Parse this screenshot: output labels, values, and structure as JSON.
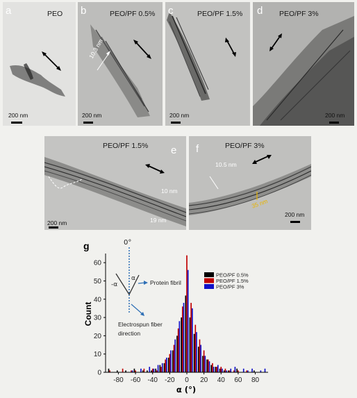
{
  "panels": [
    {
      "label": "a",
      "title": "PEO",
      "scale": "200 nm",
      "annotations": []
    },
    {
      "label": "b",
      "title": "PEO/PF 0.5%",
      "scale": "200 nm",
      "annotations": [
        "10.3 nm"
      ]
    },
    {
      "label": "c",
      "title": "PEO/PF 1.5%",
      "scale": "200 nm",
      "annotations": []
    },
    {
      "label": "d",
      "title": "PEO/PF 3%",
      "scale": "200 nm",
      "annotations": []
    },
    {
      "label": "e",
      "title": "PEO/PF 1.5%",
      "scale": "200 nm",
      "annotations": [
        "10 nm",
        "19 nm"
      ]
    },
    {
      "label": "f",
      "title": "PEO/PF 3%",
      "scale": "200 nm",
      "annotations": [
        "10.5 nm",
        "35 nm"
      ]
    }
  ],
  "chart_data": {
    "type": "bar",
    "panel_label": "g",
    "xlabel": "α (°)",
    "ylabel": "Count",
    "xlim": [
      -95,
      95
    ],
    "ylim": [
      0,
      65
    ],
    "xticks": [
      -80,
      -60,
      -40,
      -20,
      0,
      20,
      40,
      60,
      80
    ],
    "yticks": [
      0,
      10,
      20,
      30,
      40,
      50,
      60
    ],
    "grid": false,
    "legend_position": "right",
    "x": [
      -90,
      -85,
      -80,
      -75,
      -70,
      -65,
      -60,
      -55,
      -50,
      -45,
      -40,
      -35,
      -30,
      -25,
      -20,
      -15,
      -10,
      -5,
      0,
      5,
      10,
      15,
      20,
      25,
      30,
      35,
      40,
      45,
      50,
      55,
      60,
      65,
      70,
      75,
      80,
      85,
      90
    ],
    "series": [
      {
        "name": "PEO/PF 0.5%",
        "color": "#000000",
        "values": [
          2,
          0,
          1,
          0,
          1,
          0,
          2,
          0,
          1,
          1,
          1,
          2,
          4,
          5,
          8,
          12,
          20,
          30,
          42,
          30,
          21,
          14,
          9,
          7,
          4,
          3,
          2,
          1,
          1,
          0,
          2,
          0,
          0,
          0,
          1,
          0,
          0
        ]
      },
      {
        "name": "PEO/PF 1.5%",
        "color": "#c00000",
        "values": [
          1,
          0,
          0,
          2,
          0,
          1,
          1,
          0,
          2,
          0,
          2,
          1,
          3,
          7,
          10,
          15,
          24,
          36,
          64,
          38,
          26,
          18,
          12,
          7,
          5,
          3,
          3,
          2,
          1,
          1,
          1,
          0,
          1,
          0,
          0,
          0,
          0
        ]
      },
      {
        "name": "PEO/PF 3%",
        "color": "#1010c8",
        "values": [
          0,
          0,
          0,
          0,
          0,
          1,
          0,
          2,
          0,
          3,
          2,
          4,
          5,
          8,
          12,
          18,
          28,
          38,
          56,
          35,
          22,
          15,
          9,
          6,
          3,
          4,
          2,
          1,
          2,
          3,
          0,
          2,
          1,
          2,
          0,
          1,
          2
        ]
      }
    ],
    "inset": {
      "top_label": "0°",
      "alpha_left": "-α",
      "alpha_right": "α",
      "protein_label": "Protein fibril",
      "fiber_label": "Electrospun fiber direction"
    }
  },
  "colors": {
    "annotation_yellow": "#e8b400",
    "inset_blue": "#2e6fb5"
  }
}
